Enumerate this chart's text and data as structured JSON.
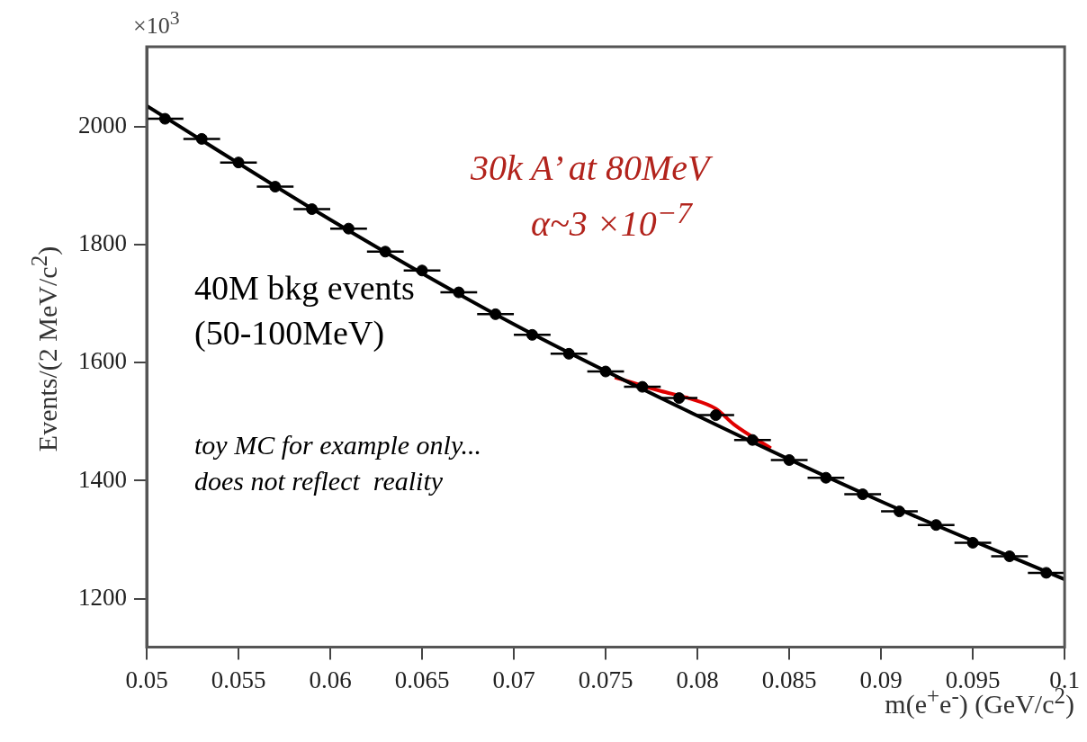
{
  "chart_data": {
    "type": "scatter",
    "xlabel": "m(e$^{+}$e$^{-}$) (GeV/c$^{2}$)",
    "ylabel": "Events/(2 MeV/c$^{2}$)",
    "xlim": [
      0.05,
      0.1
    ],
    "xticks": [
      0.05,
      0.055,
      0.06,
      0.065,
      0.07,
      0.075,
      0.08,
      0.085,
      0.09,
      0.095,
      0.1
    ],
    "ylim": [
      1118,
      2135
    ],
    "yticks": [
      1200,
      1400,
      1600,
      1800,
      2000
    ],
    "grid": false,
    "legend": false,
    "series": [
      {
        "type": "scatter",
        "color": "#000000",
        "marker": "circle",
        "x": [
          0.051,
          0.053,
          0.055,
          0.057,
          0.059,
          0.061,
          0.063,
          0.065,
          0.067,
          0.069,
          0.071,
          0.073,
          0.075,
          0.077,
          0.079,
          0.081,
          0.083,
          0.085,
          0.087,
          0.089,
          0.091,
          0.093,
          0.095,
          0.097,
          0.099
        ],
        "values": [
          2013,
          1979,
          1939,
          1898,
          1860,
          1827,
          1788,
          1756,
          1719,
          1682,
          1647,
          1615,
          1585,
          1559,
          1540,
          1511,
          1469,
          1435,
          1405,
          1377,
          1348,
          1325,
          1295,
          1272,
          1244
        ],
        "xerrors": [
          0.001,
          0.001,
          0.001,
          0.001,
          0.001,
          0.001,
          0.001,
          0.001,
          0.001,
          0.001,
          0.001,
          0.001,
          0.001,
          0.001,
          0.001,
          0.001,
          0.001,
          0.001,
          0.001,
          0.001,
          0.001,
          0.001,
          0.001,
          0.001,
          0.001
        ]
      },
      {
        "type": "line",
        "color": "#000000",
        "x": [
          0.05,
          0.06,
          0.07,
          0.08,
          0.09,
          0.1
        ],
        "values": [
          2035,
          1842,
          1665,
          1510,
          1365,
          1233
        ]
      },
      {
        "type": "line",
        "color": "#e00000",
        "x": [
          0.0755,
          0.078,
          0.0795,
          0.081,
          0.082,
          0.084
        ],
        "values": [
          1575,
          1552,
          1540,
          1522,
          1495,
          1455
        ]
      }
    ],
    "annotations": [
      "×10$^{3}$",
      "30k A’ at 80MeV",
      "α~3 ×10$^{−7}$",
      "40M bkg events",
      "(50-100MeV)",
      "toy MC for example only...",
      "does not reflect  reality"
    ]
  }
}
